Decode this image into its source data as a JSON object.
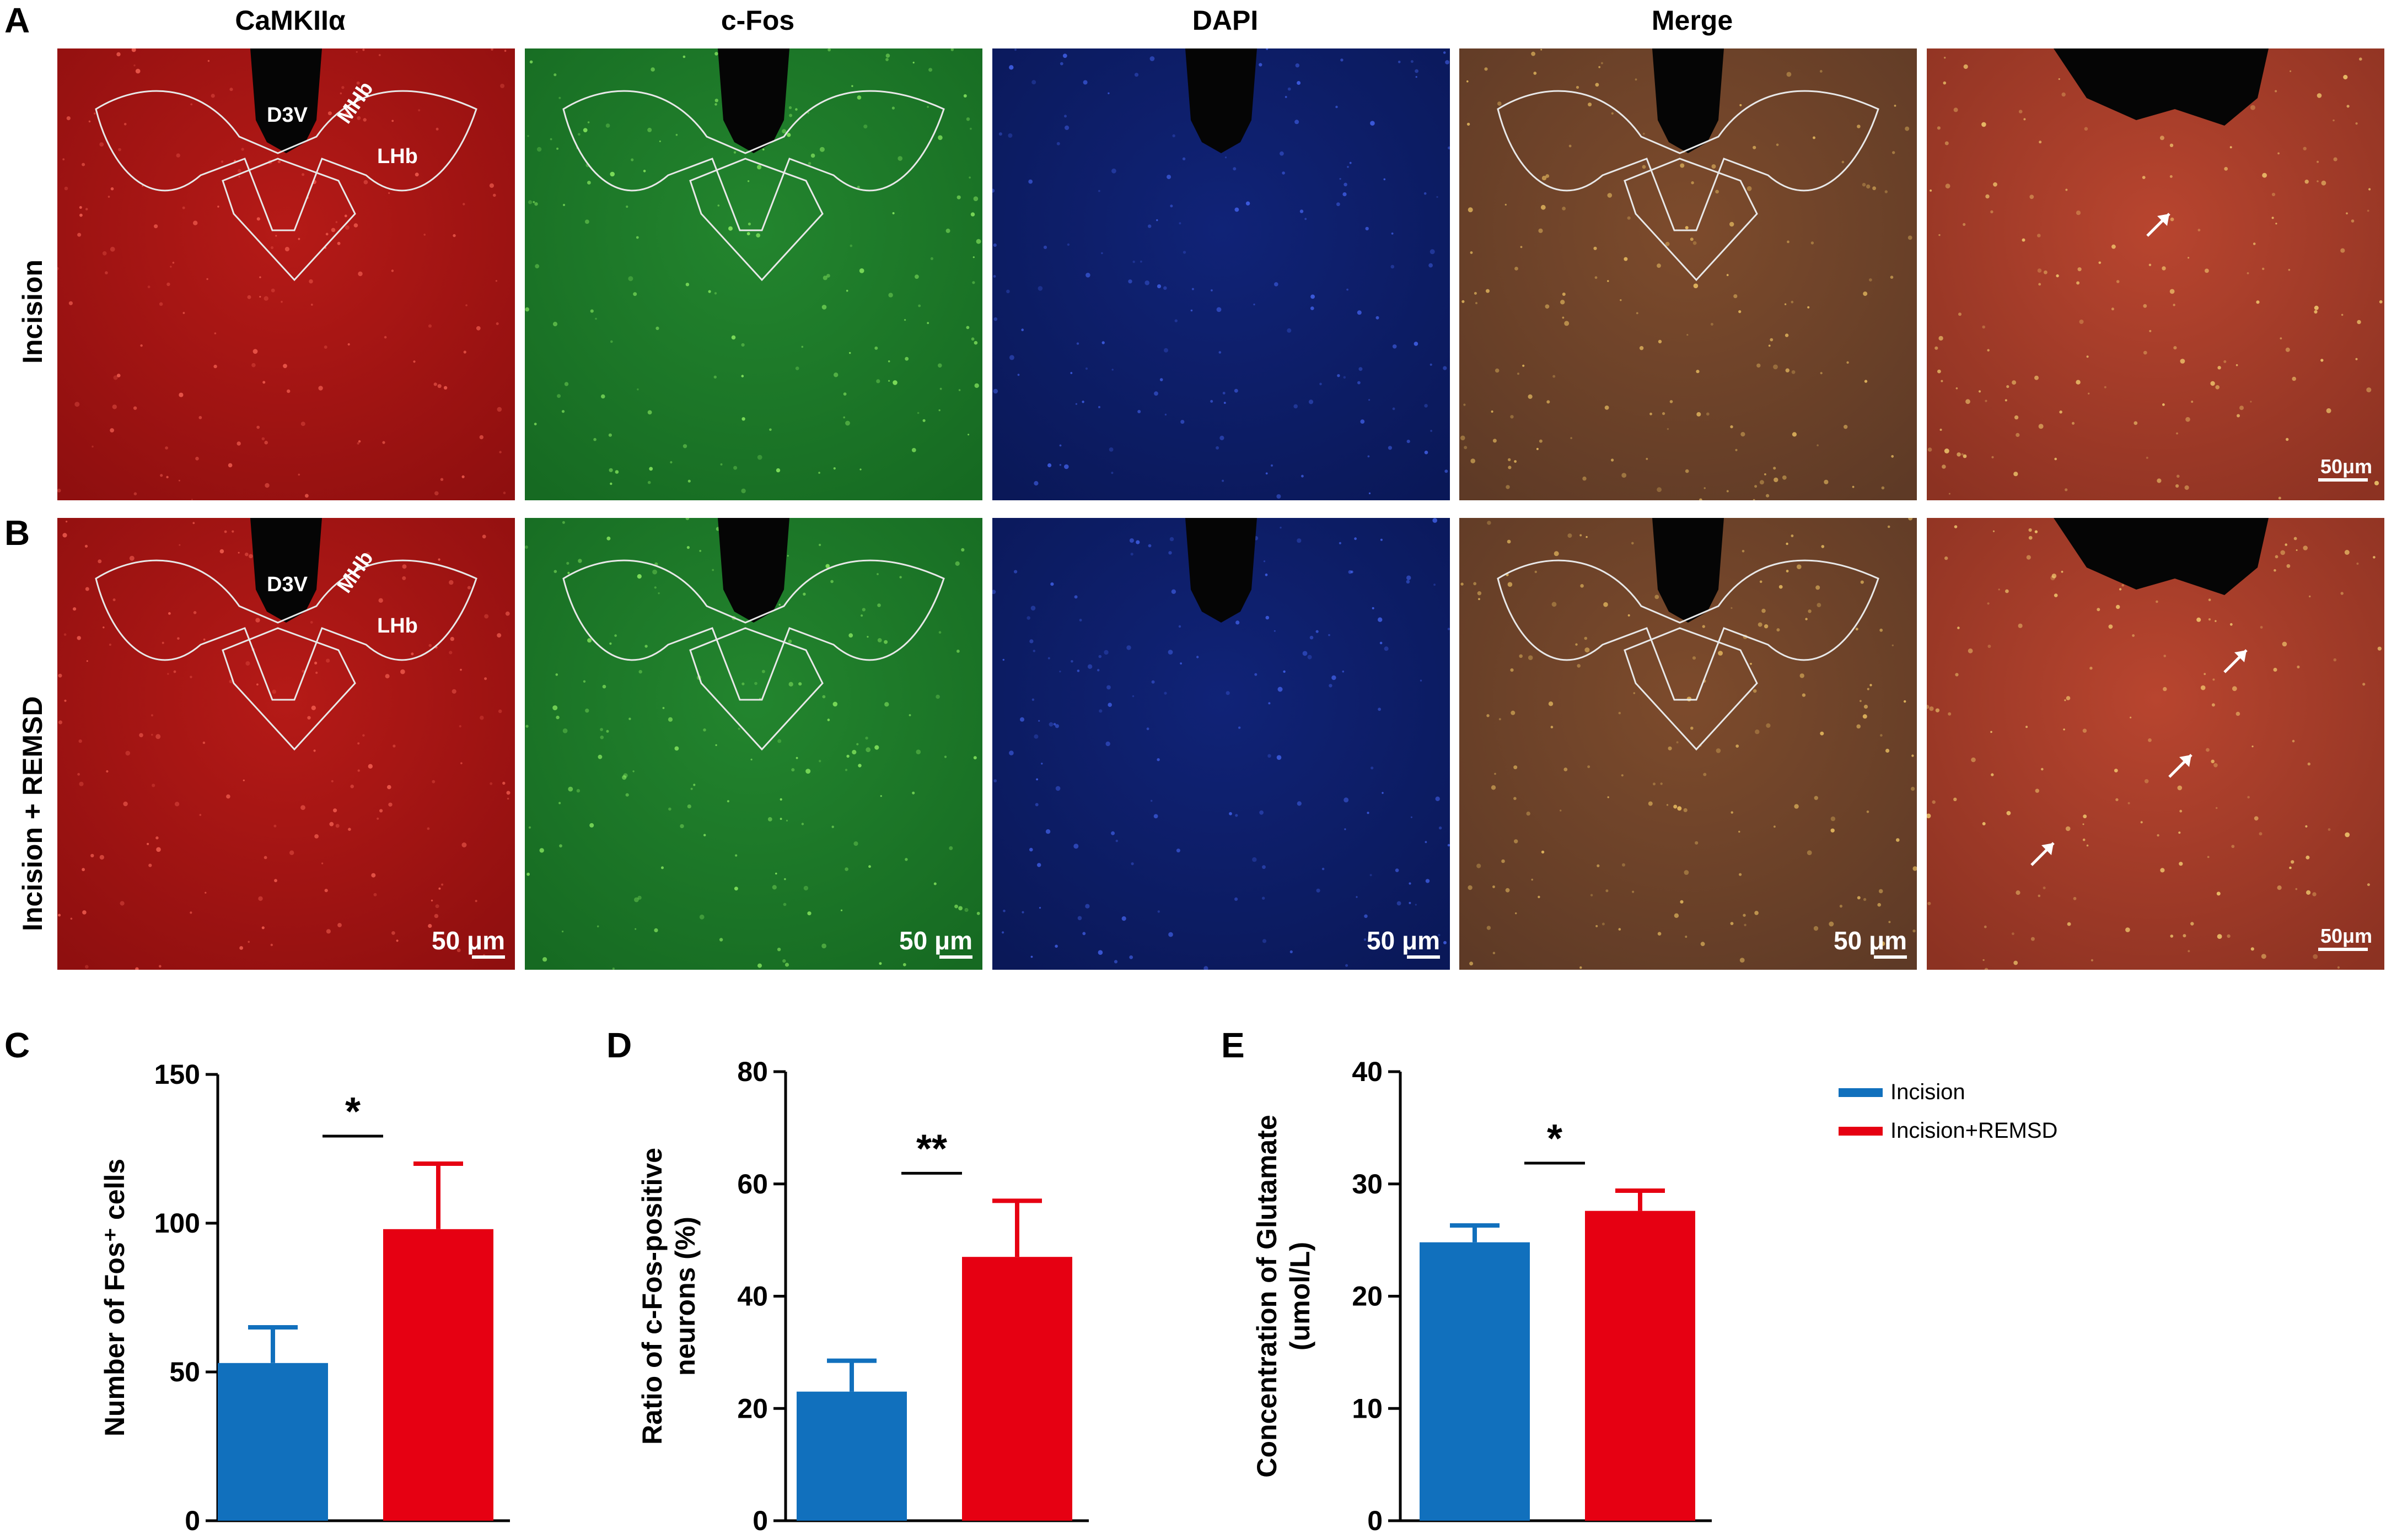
{
  "panels": {
    "A": "A",
    "B": "B",
    "C": "C",
    "D": "D",
    "E": "E"
  },
  "column_headers": [
    "CaMKIIα",
    "c-Fos",
    "DAPI",
    "Merge"
  ],
  "row_labels": [
    "Incision",
    "Incision + REMSD"
  ],
  "region_labels": {
    "d3v": "D3V",
    "mhb": "MHb",
    "lhb": "LHb"
  },
  "scale_bars": {
    "overview": "50 μm",
    "zoom": "50μm"
  },
  "colors": {
    "incision": "#1170bd",
    "remsd": "#e60012",
    "camk_bg": "#b01616",
    "cfos_bg": "#1d7d2a",
    "dapi_bg": "#0d1f6e",
    "merge_bg": "#7a4a2a"
  },
  "legend": [
    {
      "label": "Incision",
      "color": "#1170bd"
    },
    {
      "label": "Incision+REMSD",
      "color": "#e60012"
    }
  ],
  "chart_data": [
    {
      "type": "bar",
      "panel": "C",
      "categories": [
        "Incision",
        "Incision+REMSD"
      ],
      "values": [
        53,
        98
      ],
      "errors": [
        12,
        22
      ],
      "ylim": [
        0,
        150
      ],
      "yticks": [
        0,
        50,
        100,
        150
      ],
      "ylabel": "Number of Fos⁺ cells",
      "significance": "*"
    },
    {
      "type": "bar",
      "panel": "D",
      "categories": [
        "Incision",
        "Incision+REMSD"
      ],
      "values": [
        23,
        47
      ],
      "errors": [
        5.5,
        10
      ],
      "ylim": [
        0,
        80
      ],
      "yticks": [
        0,
        20,
        40,
        60,
        80
      ],
      "ylabel_lines": [
        "Ratio of c-Fos-positive",
        "neurons (%)"
      ],
      "significance": "**"
    },
    {
      "type": "bar",
      "panel": "E",
      "categories": [
        "Incision",
        "Incision+REMSD"
      ],
      "values": [
        24.8,
        27.6
      ],
      "errors": [
        1.5,
        1.8
      ],
      "ylim": [
        0,
        40
      ],
      "yticks": [
        0,
        10,
        20,
        30,
        40
      ],
      "ylabel_lines": [
        "Concentration of Glutamate",
        "(umol/L)"
      ],
      "significance": "*"
    }
  ]
}
